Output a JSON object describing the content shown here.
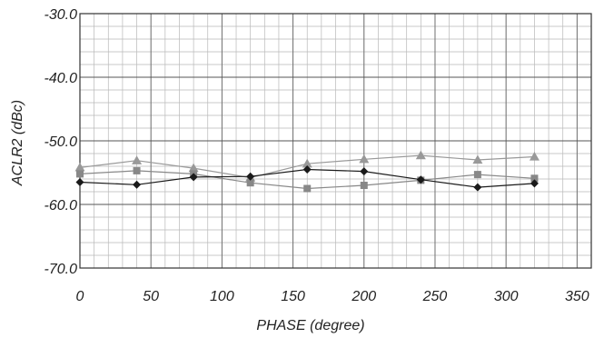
{
  "chart_data": {
    "type": "line",
    "title": "",
    "xlabel": "PHASE (degree)",
    "ylabel": "ACLR2 (dBc)",
    "xlim": [
      0,
      360
    ],
    "ylim": [
      -70,
      -30
    ],
    "x_ticks": [
      0,
      50,
      100,
      150,
      200,
      250,
      300,
      350
    ],
    "x_tick_labels": [
      "0",
      "50",
      "100",
      "150",
      "200",
      "250",
      "300",
      "350"
    ],
    "y_ticks": [
      -30,
      -40,
      -50,
      -60,
      -70
    ],
    "y_tick_labels": [
      "-30.0",
      "-40.0",
      "-50.0",
      "-60.0",
      "-70.0"
    ],
    "grid": true,
    "x": [
      0,
      40,
      80,
      120,
      160,
      200,
      240,
      280,
      320
    ],
    "series": [
      {
        "marker": "triangle",
        "color": "#999999",
        "values": [
          -54.2,
          -53.1,
          -54.3,
          -55.8,
          -53.6,
          -52.9,
          -52.3,
          -53.0,
          -52.5
        ]
      },
      {
        "marker": "square",
        "color": "#888888",
        "values": [
          -55.2,
          -54.7,
          -55.2,
          -56.6,
          -57.5,
          -57.0,
          -56.2,
          -55.3,
          -55.9
        ]
      },
      {
        "marker": "diamond",
        "color": "#1a1a1a",
        "values": [
          -56.5,
          -56.9,
          -55.7,
          -55.6,
          -54.5,
          -54.8,
          -56.1,
          -57.3,
          -56.7
        ]
      }
    ]
  }
}
